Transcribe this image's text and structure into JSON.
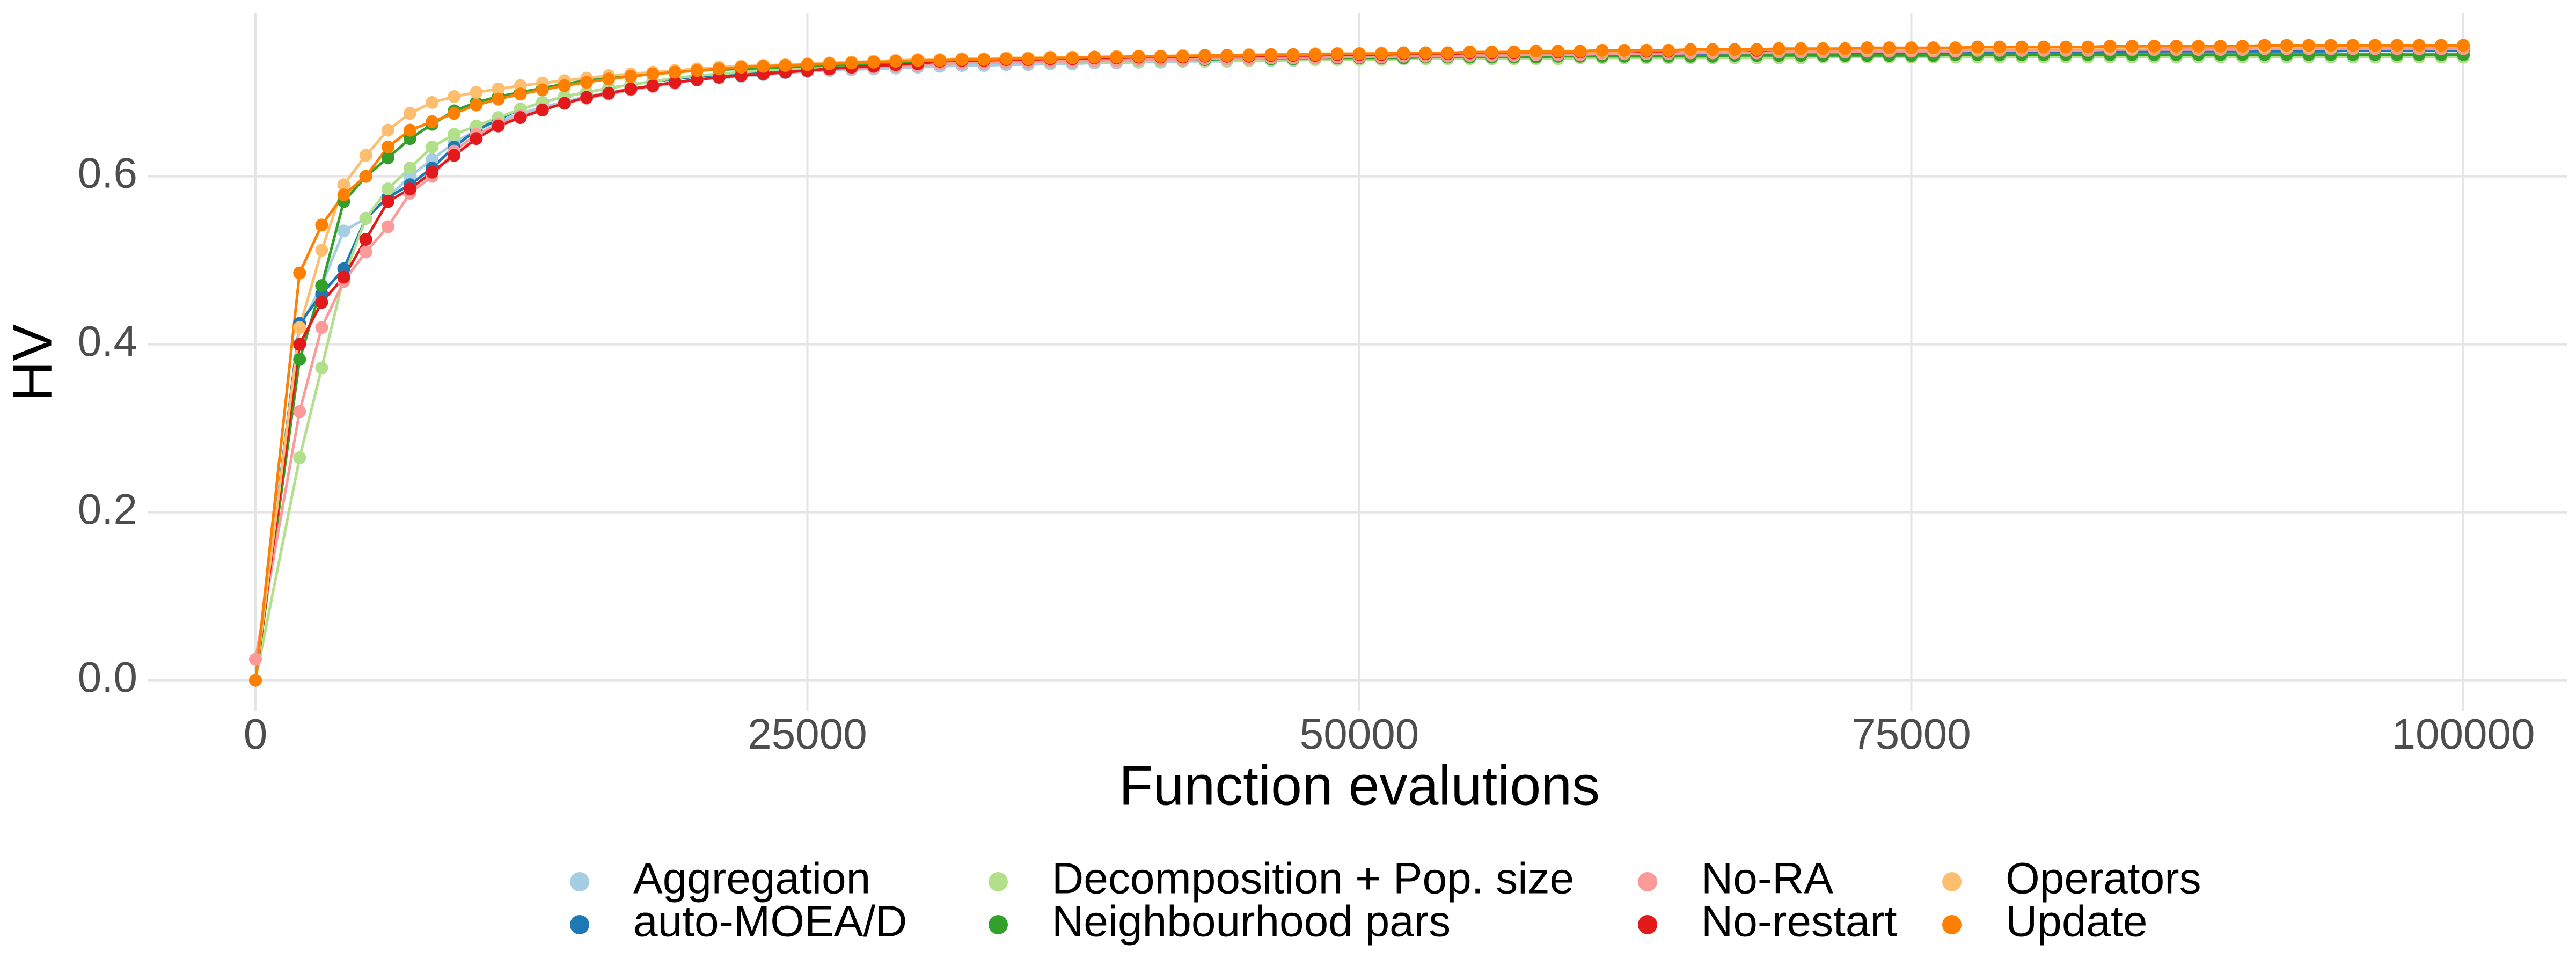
{
  "chart_data": {
    "type": "line",
    "xlabel": "Function evalutions",
    "ylabel": "HV",
    "xlim": [
      -4861,
      104690
    ],
    "ylim": [
      -0.036,
      0.794
    ],
    "xticks": [
      0,
      25000,
      50000,
      75000,
      100000
    ],
    "yticks": [
      {
        "value": 0,
        "label": "0.0"
      },
      {
        "value": 0.2,
        "label": "0.2"
      },
      {
        "value": 0.4,
        "label": "0.4"
      },
      {
        "value": 0.6,
        "label": "0.6"
      }
    ],
    "grid": true,
    "legend": "bottom",
    "x": [
      0,
      2000,
      3000,
      4000,
      5000,
      6000,
      7000,
      8000,
      9000,
      10000,
      11000,
      12000,
      13000,
      14000,
      15000,
      16000,
      17000,
      18000,
      19000,
      20000,
      21000,
      22000,
      23000,
      24000,
      25000,
      26000,
      27000,
      28000,
      29000,
      30000,
      31000,
      32000,
      33000,
      34000,
      35000,
      36000,
      37000,
      38000,
      39000,
      40000,
      41000,
      42000,
      43000,
      44000,
      45000,
      46000,
      47000,
      48000,
      49000,
      50000,
      51000,
      52000,
      53000,
      54000,
      55000,
      56000,
      57000,
      58000,
      59000,
      60000,
      61000,
      62000,
      63000,
      64000,
      65000,
      66000,
      67000,
      68000,
      69000,
      70000,
      71000,
      72000,
      73000,
      74000,
      75000,
      76000,
      77000,
      78000,
      79000,
      80000,
      81000,
      82000,
      83000,
      84000,
      85000,
      86000,
      87000,
      88000,
      89000,
      90000,
      91000,
      92000,
      93000,
      94000,
      95000,
      96000,
      97000,
      98000,
      99000,
      100000
    ],
    "series": [
      {
        "name": "Aggregation",
        "color": "#a6cee3",
        "values": [
          0,
          0.42,
          0.47,
          0.535,
          0.55,
          0.575,
          0.6,
          0.62,
          0.64,
          0.655,
          0.665,
          0.675,
          0.682,
          0.689,
          0.695,
          0.7,
          0.704,
          0.708,
          0.712,
          0.715,
          0.717,
          0.719,
          0.721,
          0.723,
          0.725,
          0.726,
          0.727,
          0.728,
          0.729,
          0.73,
          0.731,
          0.732,
          0.732,
          0.733,
          0.733,
          0.734,
          0.734,
          0.735,
          0.735,
          0.736,
          0.736,
          0.737,
          0.737,
          0.737,
          0.738,
          0.738,
          0.738,
          0.739,
          0.739,
          0.739,
          0.74,
          0.74,
          0.74,
          0.741,
          0.741,
          0.741,
          0.741,
          0.742,
          0.742,
          0.742,
          0.742,
          0.743,
          0.743,
          0.743,
          0.743,
          0.743,
          0.744,
          0.744,
          0.744,
          0.744,
          0.744,
          0.744,
          0.745,
          0.745,
          0.745,
          0.745,
          0.745,
          0.745,
          0.745,
          0.745,
          0.746,
          0.746,
          0.746,
          0.746,
          0.746,
          0.746,
          0.746,
          0.746,
          0.746,
          0.746,
          0.746,
          0.746,
          0.746,
          0.746,
          0.746,
          0.746,
          0.746,
          0.746,
          0.746,
          0.746
        ]
      },
      {
        "name": "auto-MOEA/D",
        "color": "#1f78b4",
        "values": [
          0,
          0.425,
          0.46,
          0.49,
          0.55,
          0.575,
          0.59,
          0.61,
          0.635,
          0.655,
          0.668,
          0.68,
          0.688,
          0.695,
          0.7,
          0.705,
          0.709,
          0.713,
          0.716,
          0.719,
          0.721,
          0.723,
          0.725,
          0.727,
          0.728,
          0.729,
          0.73,
          0.731,
          0.732,
          0.733,
          0.734,
          0.735,
          0.735,
          0.736,
          0.736,
          0.737,
          0.737,
          0.737,
          0.738,
          0.738,
          0.738,
          0.739,
          0.739,
          0.739,
          0.74,
          0.74,
          0.74,
          0.741,
          0.741,
          0.741,
          0.742,
          0.742,
          0.742,
          0.742,
          0.743,
          0.743,
          0.743,
          0.743,
          0.744,
          0.744,
          0.744,
          0.744,
          0.745,
          0.745,
          0.745,
          0.745,
          0.745,
          0.746,
          0.746,
          0.746,
          0.746,
          0.746,
          0.747,
          0.747,
          0.747,
          0.747,
          0.747,
          0.747,
          0.748,
          0.748,
          0.748,
          0.748,
          0.748,
          0.748,
          0.748,
          0.749,
          0.749,
          0.749,
          0.749,
          0.749,
          0.749,
          0.749,
          0.749,
          0.749,
          0.75,
          0.75,
          0.75,
          0.75,
          0.75,
          0.75
        ]
      },
      {
        "name": "Decomposition + Pop. size",
        "color": "#b2df8a",
        "values": [
          0,
          0.265,
          0.372,
          0.48,
          0.55,
          0.585,
          0.61,
          0.635,
          0.65,
          0.66,
          0.67,
          0.68,
          0.688,
          0.695,
          0.7,
          0.705,
          0.709,
          0.713,
          0.717,
          0.72,
          0.722,
          0.724,
          0.726,
          0.728,
          0.729,
          0.73,
          0.731,
          0.732,
          0.733,
          0.734,
          0.734,
          0.735,
          0.735,
          0.736,
          0.736,
          0.736,
          0.737,
          0.737,
          0.737,
          0.737,
          0.738,
          0.738,
          0.738,
          0.738,
          0.738,
          0.739,
          0.739,
          0.739,
          0.739,
          0.739,
          0.739,
          0.74,
          0.74,
          0.74,
          0.74,
          0.74,
          0.74,
          0.74,
          0.74,
          0.741,
          0.741,
          0.741,
          0.741,
          0.741,
          0.741,
          0.741,
          0.741,
          0.741,
          0.741,
          0.741,
          0.742,
          0.742,
          0.742,
          0.742,
          0.742,
          0.742,
          0.742,
          0.742,
          0.742,
          0.742,
          0.742,
          0.742,
          0.742,
          0.742,
          0.742,
          0.742,
          0.742,
          0.742,
          0.742,
          0.742,
          0.742,
          0.742,
          0.742,
          0.742,
          0.742,
          0.742,
          0.742,
          0.742,
          0.742,
          0.742
        ]
      },
      {
        "name": "Neighbourhood pars",
        "color": "#33a02c",
        "values": [
          0,
          0.382,
          0.47,
          0.57,
          0.6,
          0.622,
          0.645,
          0.662,
          0.678,
          0.688,
          0.695,
          0.7,
          0.705,
          0.71,
          0.714,
          0.717,
          0.72,
          0.722,
          0.724,
          0.726,
          0.727,
          0.728,
          0.729,
          0.73,
          0.731,
          0.732,
          0.733,
          0.733,
          0.734,
          0.735,
          0.735,
          0.736,
          0.736,
          0.737,
          0.737,
          0.737,
          0.738,
          0.738,
          0.738,
          0.739,
          0.739,
          0.739,
          0.739,
          0.74,
          0.74,
          0.74,
          0.74,
          0.741,
          0.741,
          0.741,
          0.741,
          0.741,
          0.742,
          0.742,
          0.742,
          0.742,
          0.742,
          0.742,
          0.743,
          0.743,
          0.743,
          0.743,
          0.743,
          0.743,
          0.743,
          0.743,
          0.744,
          0.744,
          0.744,
          0.744,
          0.744,
          0.744,
          0.744,
          0.744,
          0.744,
          0.744,
          0.745,
          0.745,
          0.745,
          0.745,
          0.745,
          0.745,
          0.745,
          0.745,
          0.745,
          0.745,
          0.745,
          0.745,
          0.745,
          0.745,
          0.745,
          0.745,
          0.745,
          0.745,
          0.745,
          0.745,
          0.745,
          0.745,
          0.745,
          0.745
        ]
      },
      {
        "name": "No-RA",
        "color": "#fb9a99",
        "values": [
          0.025,
          0.32,
          0.42,
          0.475,
          0.51,
          0.54,
          0.58,
          0.6,
          0.63,
          0.65,
          0.662,
          0.672,
          0.68,
          0.687,
          0.693,
          0.698,
          0.703,
          0.707,
          0.711,
          0.715,
          0.718,
          0.72,
          0.722,
          0.724,
          0.726,
          0.728,
          0.729,
          0.73,
          0.731,
          0.732,
          0.734,
          0.735,
          0.735,
          0.736,
          0.736,
          0.737,
          0.737,
          0.738,
          0.738,
          0.739,
          0.739,
          0.739,
          0.74,
          0.74,
          0.74,
          0.741,
          0.741,
          0.741,
          0.742,
          0.742,
          0.742,
          0.743,
          0.743,
          0.743,
          0.744,
          0.744,
          0.744,
          0.745,
          0.745,
          0.745,
          0.746,
          0.746,
          0.746,
          0.746,
          0.747,
          0.747,
          0.747,
          0.747,
          0.748,
          0.748,
          0.748,
          0.748,
          0.749,
          0.749,
          0.749,
          0.749,
          0.749,
          0.75,
          0.75,
          0.75,
          0.75,
          0.75,
          0.75,
          0.751,
          0.751,
          0.751,
          0.751,
          0.751,
          0.751,
          0.751,
          0.752,
          0.752,
          0.752,
          0.752,
          0.752,
          0.752,
          0.752,
          0.752,
          0.752,
          0.752
        ]
      },
      {
        "name": "No-restart",
        "color": "#e31a1c",
        "values": [
          0,
          0.4,
          0.45,
          0.48,
          0.525,
          0.57,
          0.585,
          0.605,
          0.625,
          0.645,
          0.66,
          0.67,
          0.679,
          0.687,
          0.694,
          0.699,
          0.704,
          0.708,
          0.712,
          0.715,
          0.718,
          0.72,
          0.722,
          0.724,
          0.726,
          0.728,
          0.73,
          0.731,
          0.733,
          0.734,
          0.737,
          0.738,
          0.738,
          0.739,
          0.739,
          0.74,
          0.74,
          0.741,
          0.741,
          0.742,
          0.742,
          0.742,
          0.743,
          0.743,
          0.743,
          0.744,
          0.744,
          0.744,
          0.745,
          0.745,
          0.745,
          0.746,
          0.746,
          0.746,
          0.747,
          0.747,
          0.747,
          0.748,
          0.748,
          0.748,
          0.749,
          0.749,
          0.749,
          0.749,
          0.75,
          0.75,
          0.75,
          0.75,
          0.751,
          0.751,
          0.751,
          0.751,
          0.752,
          0.752,
          0.752,
          0.752,
          0.752,
          0.753,
          0.753,
          0.753,
          0.753,
          0.753,
          0.753,
          0.754,
          0.754,
          0.754,
          0.754,
          0.754,
          0.754,
          0.754,
          0.755,
          0.755,
          0.755,
          0.755,
          0.755,
          0.755,
          0.755,
          0.755,
          0.755,
          0.755
        ]
      },
      {
        "name": "Operators",
        "color": "#fdbf6f",
        "values": [
          0,
          0.42,
          0.512,
          0.59,
          0.625,
          0.655,
          0.675,
          0.688,
          0.695,
          0.7,
          0.704,
          0.708,
          0.711,
          0.714,
          0.717,
          0.72,
          0.722,
          0.724,
          0.726,
          0.728,
          0.73,
          0.731,
          0.732,
          0.733,
          0.734,
          0.735,
          0.736,
          0.737,
          0.738,
          0.739,
          0.739,
          0.74,
          0.74,
          0.741,
          0.741,
          0.742,
          0.742,
          0.742,
          0.743,
          0.743,
          0.743,
          0.744,
          0.744,
          0.744,
          0.745,
          0.745,
          0.745,
          0.746,
          0.746,
          0.746,
          0.747,
          0.747,
          0.747,
          0.747,
          0.748,
          0.748,
          0.748,
          0.748,
          0.749,
          0.749,
          0.749,
          0.749,
          0.75,
          0.75,
          0.75,
          0.75,
          0.75,
          0.751,
          0.751,
          0.751,
          0.751,
          0.751,
          0.752,
          0.752,
          0.752,
          0.752,
          0.752,
          0.752,
          0.753,
          0.753,
          0.753,
          0.753,
          0.753,
          0.753,
          0.753,
          0.754,
          0.754,
          0.754,
          0.754,
          0.754,
          0.754,
          0.754,
          0.754,
          0.754,
          0.755,
          0.755,
          0.755,
          0.755,
          0.755,
          0.755
        ]
      },
      {
        "name": "Update",
        "color": "#ff7f00",
        "values": [
          0,
          0.485,
          0.542,
          0.578,
          0.6,
          0.635,
          0.655,
          0.665,
          0.675,
          0.685,
          0.692,
          0.698,
          0.703,
          0.708,
          0.712,
          0.716,
          0.719,
          0.722,
          0.724,
          0.726,
          0.728,
          0.73,
          0.731,
          0.732,
          0.733,
          0.734,
          0.735,
          0.736,
          0.737,
          0.738,
          0.738,
          0.739,
          0.739,
          0.74,
          0.74,
          0.741,
          0.741,
          0.742,
          0.742,
          0.743,
          0.743,
          0.743,
          0.744,
          0.744,
          0.744,
          0.745,
          0.745,
          0.745,
          0.746,
          0.746,
          0.746,
          0.747,
          0.747,
          0.747,
          0.748,
          0.748,
          0.748,
          0.749,
          0.749,
          0.749,
          0.75,
          0.75,
          0.75,
          0.75,
          0.751,
          0.751,
          0.751,
          0.751,
          0.752,
          0.752,
          0.752,
          0.752,
          0.753,
          0.753,
          0.753,
          0.753,
          0.753,
          0.754,
          0.754,
          0.754,
          0.754,
          0.754,
          0.754,
          0.755,
          0.755,
          0.755,
          0.755,
          0.755,
          0.755,
          0.755,
          0.756,
          0.756,
          0.756,
          0.756,
          0.756,
          0.756,
          0.756,
          0.756,
          0.756,
          0.756
        ]
      }
    ]
  }
}
